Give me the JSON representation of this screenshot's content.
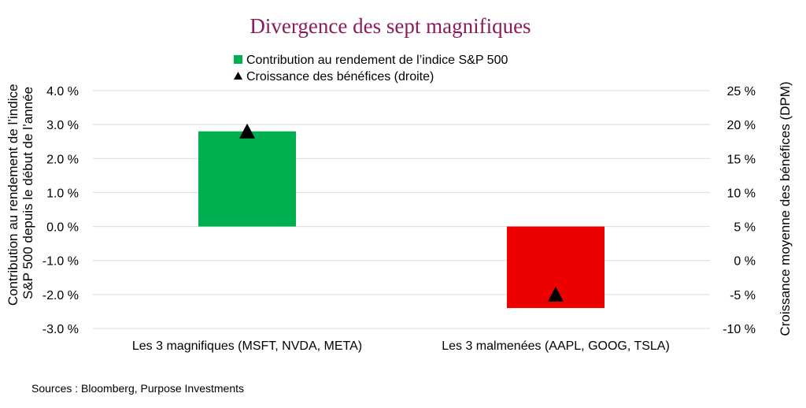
{
  "chart_data": {
    "type": "bar",
    "title": "Divergence des sept magnifiques",
    "categories": [
      "Les 3 magnifiques (MSFT, NVDA, META)",
      "Les 3 malmenées (AAPL, GOOG, TSLA)"
    ],
    "series": [
      {
        "name": "Contribution au rendement de l’indice S&P 500",
        "type": "bar",
        "axis": "left",
        "values": [
          2.8,
          -2.4
        ],
        "colors": [
          "#00b050",
          "#ee0000"
        ]
      },
      {
        "name": "Croissance des bénéfices (droite)",
        "type": "scatter",
        "marker": "triangle",
        "axis": "right",
        "values": [
          19,
          -5
        ],
        "color": "#000000"
      }
    ],
    "ylabel": "Contribution au rendement de l’indice S&P 500 depuis le début de l’année",
    "ylabel_lines": [
      "Contribution au rendement de l’indice",
      "S&P 500 depuis le début de l’année"
    ],
    "ylim": [
      -3,
      4
    ],
    "yticks": [
      "4.0 %",
      "3.0 %",
      "2.0 %",
      "1.0 %",
      "0.0 %",
      "-1.0 %",
      "-2.0 %",
      "-3.0 %"
    ],
    "y2label": "Croissance moyenne des bénéfices (DPM)",
    "y2lim": [
      -10,
      25
    ],
    "y2ticks": [
      "25 %",
      "20 %",
      "15 %",
      "10 %",
      "5 %",
      "0 %",
      "-5 %",
      "-10 %"
    ],
    "grid": true,
    "legend_placement": "top-center"
  },
  "source_note": "Sources : Bloomberg, Purpose Investments"
}
